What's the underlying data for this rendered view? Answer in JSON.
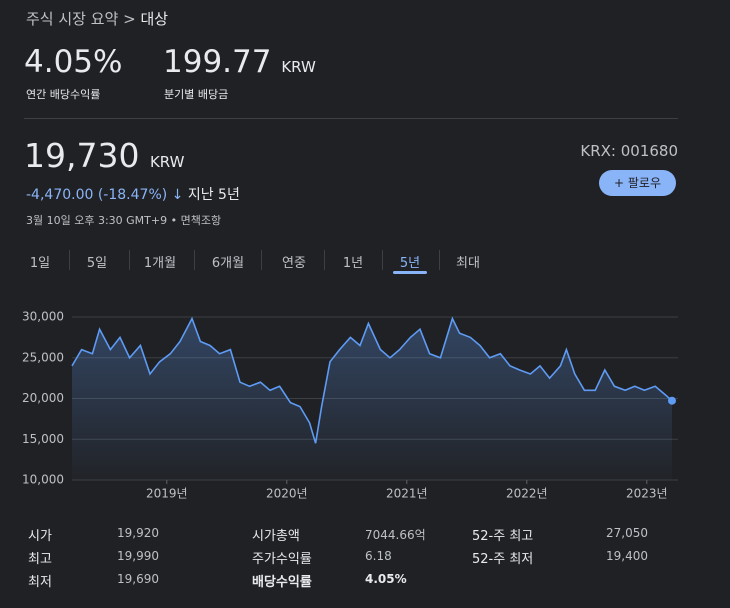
{
  "breadcrumb": {
    "parent": "주식 시장 요약",
    "separator": ">",
    "current": "대상"
  },
  "summary": [
    {
      "value": "4.05%",
      "label": "연간 배당수익률"
    },
    {
      "value": "199.77",
      "unit": "KRW",
      "label": "분기별 배당금"
    }
  ],
  "price": {
    "value": "19,730",
    "unit": "KRW",
    "change": "-4,470.00 (-18.47%)",
    "arrow": "↓",
    "period": "지난 5년",
    "timestamp": "3월 10일 오후 3:30 GMT+9 • 면책조항",
    "ticker": "KRX: 001680",
    "follow": "팔로우"
  },
  "tabs": [
    "1일",
    "5일",
    "1개월",
    "6개월",
    "연중",
    "1년",
    "5년",
    "최대"
  ],
  "chart_data": {
    "type": "line",
    "color": "#5e9bf5",
    "x": [
      2018.21,
      2018.29,
      2018.38,
      2018.44,
      2018.53,
      2018.61,
      2018.69,
      2018.78,
      2018.86,
      2018.94,
      2019.03,
      2019.11,
      2019.21,
      2019.28,
      2019.36,
      2019.44,
      2019.53,
      2019.61,
      2019.69,
      2019.78,
      2019.86,
      2019.94,
      2020.03,
      2020.11,
      2020.19,
      2020.24,
      2020.29,
      2020.36,
      2020.44,
      2020.53,
      2020.61,
      2020.68,
      2020.78,
      2020.86,
      2020.94,
      2021.03,
      2021.11,
      2021.19,
      2021.28,
      2021.38,
      2021.44,
      2021.53,
      2021.61,
      2021.69,
      2021.78,
      2021.86,
      2021.94,
      2022.03,
      2022.11,
      2022.19,
      2022.28,
      2022.33,
      2022.4,
      2022.48,
      2022.57,
      2022.65,
      2022.73,
      2022.82,
      2022.9,
      2022.98,
      2023.07,
      2023.15,
      2023.21
    ],
    "values": [
      24000,
      26000,
      25500,
      28500,
      26000,
      27500,
      25000,
      26500,
      23000,
      24500,
      25500,
      27000,
      29800,
      27000,
      26500,
      25500,
      26000,
      22000,
      21500,
      22000,
      21000,
      21500,
      19500,
      19000,
      17000,
      14500,
      19000,
      24500,
      26000,
      27500,
      26500,
      29200,
      26000,
      25000,
      26000,
      27500,
      28500,
      25500,
      25000,
      29800,
      28000,
      27500,
      26500,
      25000,
      25500,
      24000,
      23500,
      23000,
      24000,
      22500,
      24000,
      26000,
      23000,
      21000,
      21000,
      23500,
      21500,
      21000,
      21500,
      21000,
      21500,
      20500,
      19730
    ],
    "xlim": [
      2018.21,
      2023.21
    ],
    "xticks": [
      {
        "value": 2019,
        "label": "2019년"
      },
      {
        "value": 2020,
        "label": "2020년"
      },
      {
        "value": 2021,
        "label": "2021년"
      },
      {
        "value": 2022,
        "label": "2022년"
      },
      {
        "value": 2023,
        "label": "2023년"
      }
    ],
    "ylim": [
      10000,
      30000
    ],
    "yticks": [
      {
        "value": 10000,
        "label": "10,000"
      },
      {
        "value": 15000,
        "label": "15,000"
      },
      {
        "value": 20000,
        "label": "20,000"
      },
      {
        "value": 25000,
        "label": "25,000"
      },
      {
        "value": 30000,
        "label": "30,000"
      }
    ],
    "grid": true
  },
  "stats": [
    [
      [
        "시가",
        "19,920"
      ],
      [
        "시가총액",
        "7044.66억"
      ],
      [
        "52-주 최고",
        "27,050"
      ]
    ],
    [
      [
        "최고",
        "19,990"
      ],
      [
        "주가수익률",
        "6.18"
      ],
      [
        "52-주 최저",
        "19,400"
      ]
    ],
    [
      [
        "최저",
        "19,690"
      ],
      [
        "배당수익률",
        "4.05%"
      ]
    ]
  ]
}
